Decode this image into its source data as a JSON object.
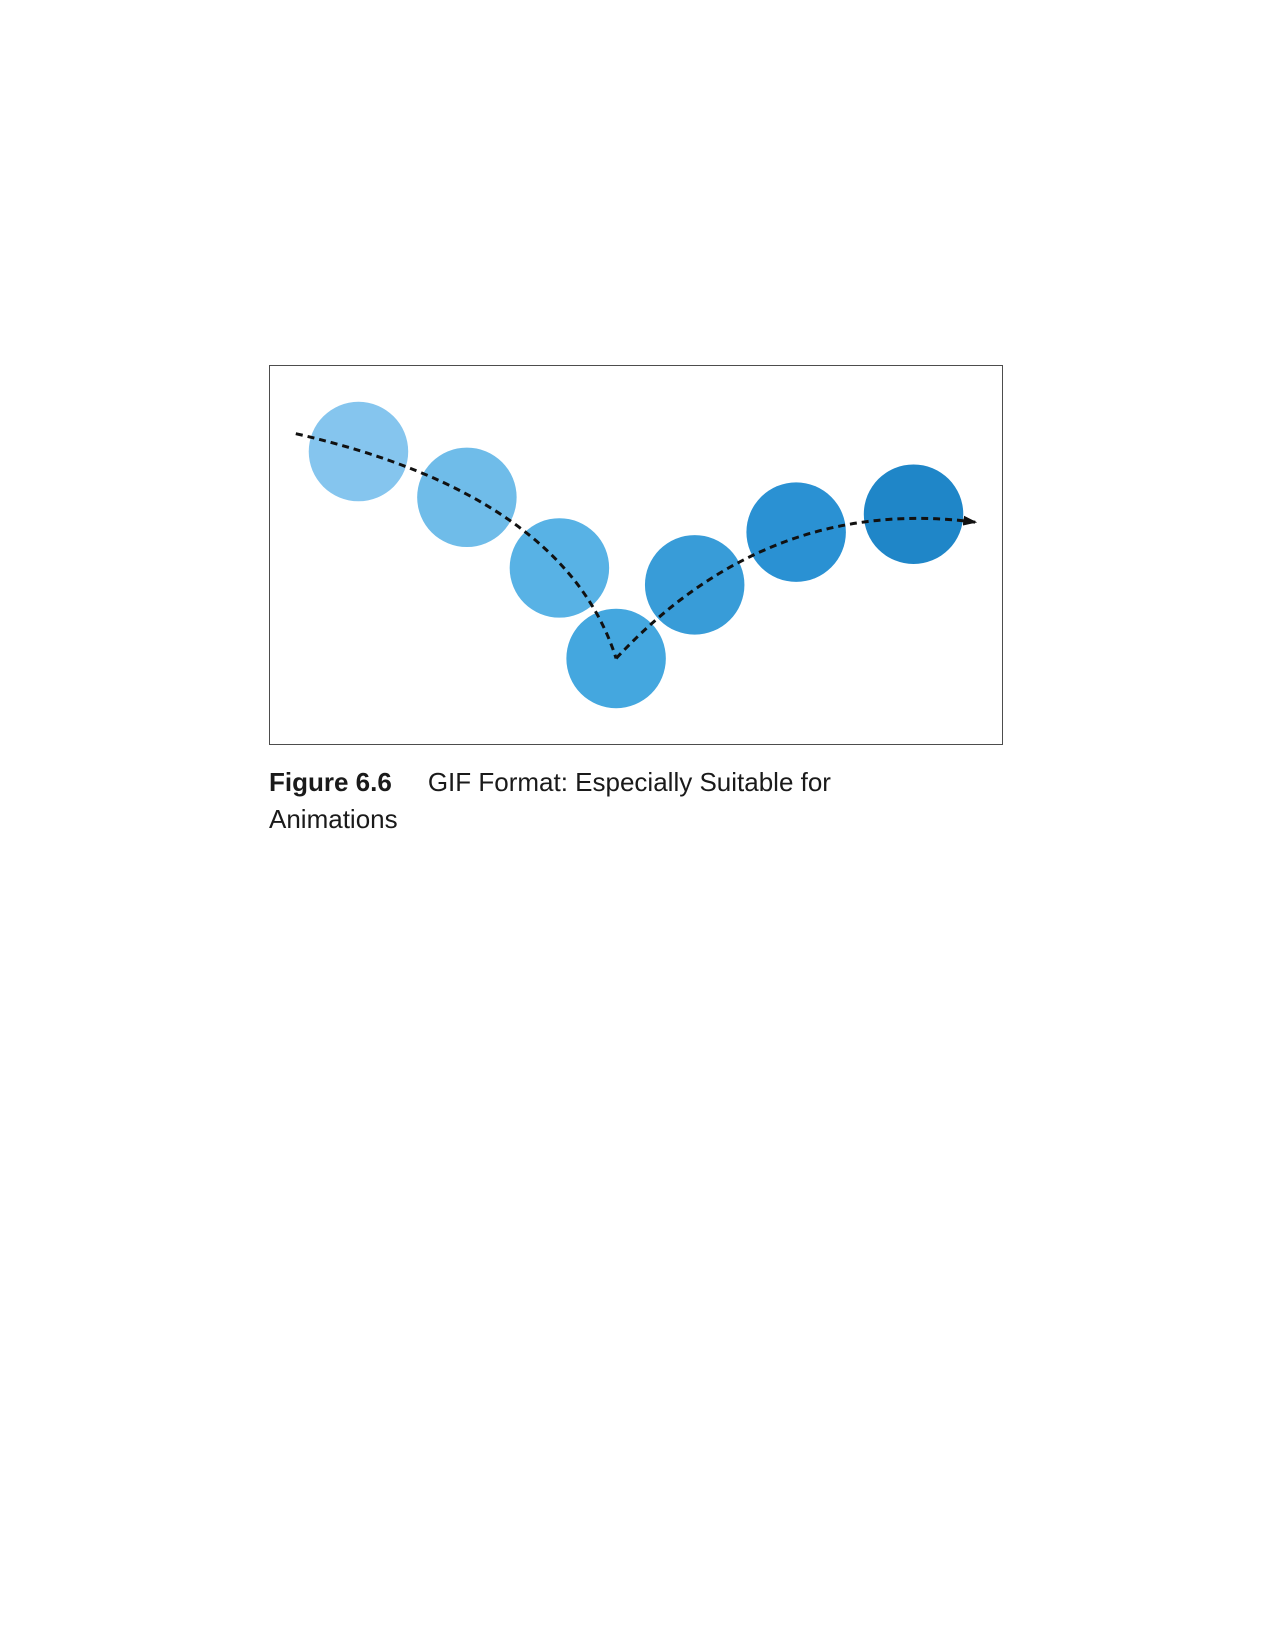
{
  "figure": {
    "number": "Figure 6.6",
    "caption": "GIF Format: Especially Suitable for Animations",
    "ball_colors": [
      "#85c5ee",
      "#6fbce9",
      "#58b2e5",
      "#44a7df",
      "#389cd8",
      "#2a91d3",
      "#1f86c8"
    ],
    "path_color": "#111111",
    "border_color": "#4d4d4d"
  }
}
